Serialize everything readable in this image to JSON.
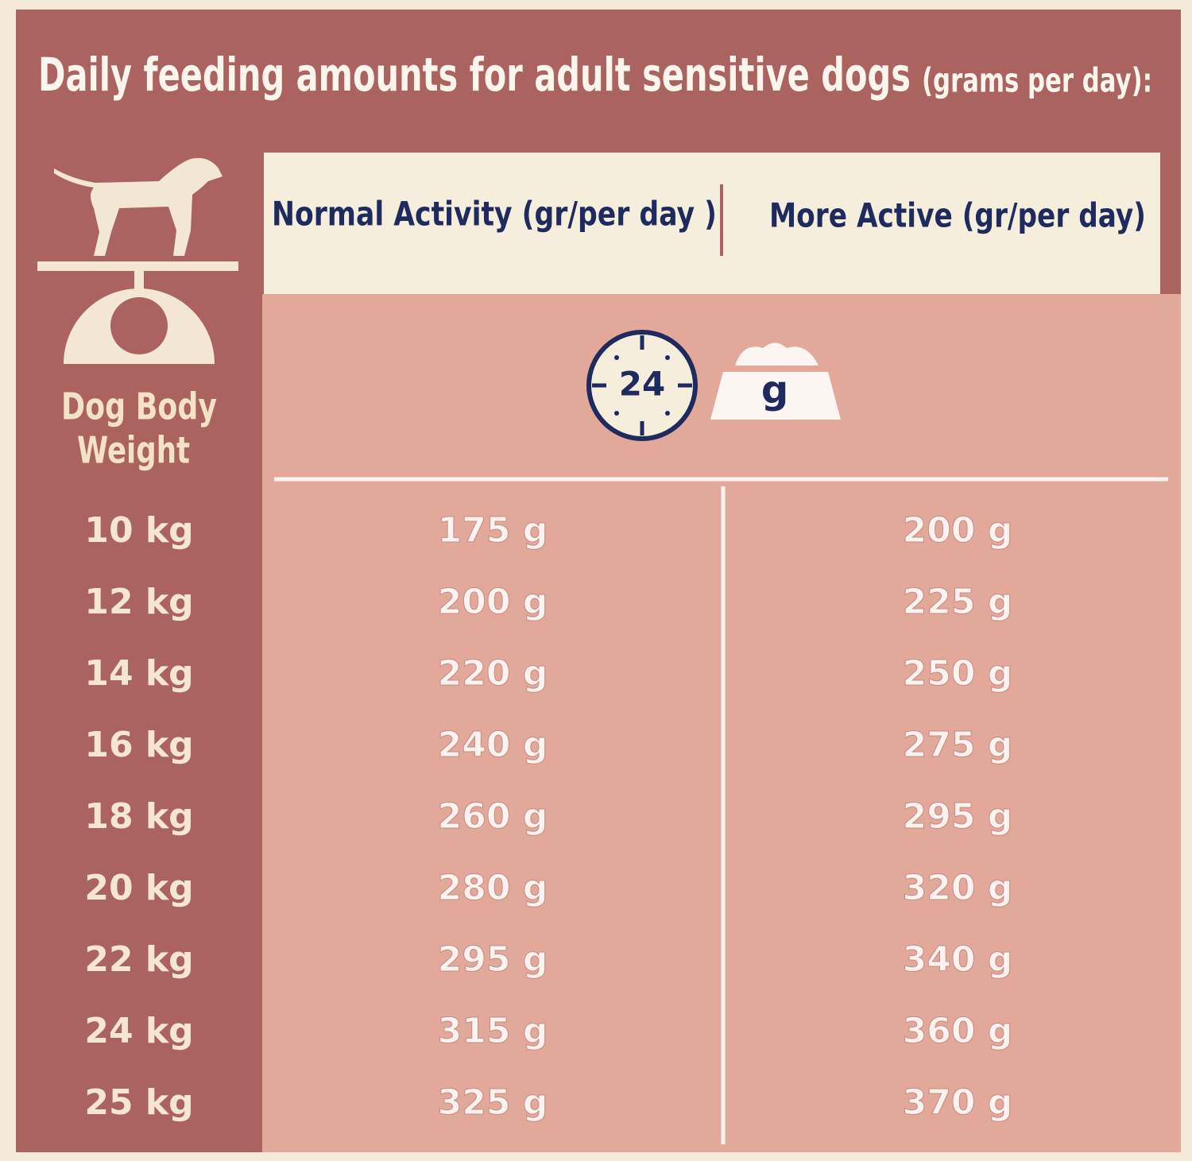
{
  "header": {
    "title": "Daily feeding amounts for adult sensitive dogs",
    "title_note": "(grams per day):"
  },
  "table": {
    "row_header": [
      "Dog Body",
      "Weight"
    ],
    "columns": [
      "Normal Activity (gr/per day )",
      "More Active (gr/per day)"
    ],
    "icon_hours": "24",
    "icon_unit": "g",
    "rows": [
      [
        "10 kg",
        "175 g",
        "200 g"
      ],
      [
        "12 kg",
        "200 g",
        "225 g"
      ],
      [
        "14 kg",
        "220 g",
        "250 g"
      ],
      [
        "16 kg",
        "240 g",
        "275 g"
      ],
      [
        "18 kg",
        "260 g",
        "295 g"
      ],
      [
        "20 kg",
        "280 g",
        "320 g"
      ],
      [
        "22 kg",
        "295 g",
        "340 g"
      ],
      [
        "24 kg",
        "315 g",
        "360 g"
      ],
      [
        "25 kg",
        "325 g",
        "370 g"
      ]
    ]
  }
}
